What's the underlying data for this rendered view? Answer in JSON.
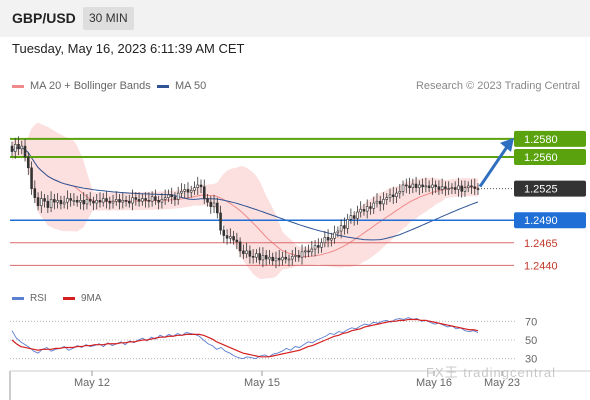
{
  "header": {
    "symbol": "GBP/USD",
    "timeframe": "30 MIN"
  },
  "datetime": "Tuesday, May 16, 2023 6:11:39 AM CET",
  "credit": "Research © 2023 Trading Central",
  "watermark": "FX王 tradingcentral",
  "colors": {
    "bollinger": "#f5a3a3",
    "ma50": "#2f5596",
    "resistance": "#5aa30e",
    "support": "#1f6fd6",
    "support_line": "#d96b6b",
    "current": "#333333",
    "rsi": "#5b7fd1",
    "rsi_ma": "#d42020",
    "arrow": "#2f6fbf"
  },
  "chart_data": [
    {
      "type": "candlestick",
      "legend": [
        {
          "name": "MA 20 + Bollinger Bands",
          "color": "#f08a8a"
        },
        {
          "name": "MA 50",
          "color": "#2f5596"
        }
      ],
      "x_ticks": [
        "May 12",
        "May 15",
        "May 16",
        "May 23"
      ],
      "ylim": [
        2.2426,
        1.2612
      ],
      "levels": [
        {
          "value": 1.258,
          "label": "1.2580",
          "kind": "resistance"
        },
        {
          "value": 1.256,
          "label": "1.2560",
          "kind": "resistance"
        },
        {
          "value": 1.2525,
          "label": "1.2525",
          "kind": "current"
        },
        {
          "value": 1.249,
          "label": "1.2490",
          "kind": "pivot"
        },
        {
          "value": 1.2465,
          "label": "1.2465",
          "kind": "support"
        },
        {
          "value": 1.244,
          "label": "1.2440",
          "kind": "support"
        }
      ],
      "close": [
        1.2566,
        1.2574,
        1.2569,
        1.2572,
        1.256,
        1.2548,
        1.2525,
        1.2515,
        1.2506,
        1.2514,
        1.2511,
        1.2504,
        1.2513,
        1.251,
        1.2512,
        1.2508,
        1.251,
        1.2514,
        1.2512,
        1.2512,
        1.251,
        1.2512,
        1.2508,
        1.2513,
        1.2511,
        1.2509,
        1.2512,
        1.251,
        1.2514,
        1.2511,
        1.2509,
        1.2511,
        1.2513,
        1.251,
        1.2512,
        1.2511,
        1.2509,
        1.2515,
        1.2513,
        1.2511,
        1.2514,
        1.2512,
        1.2511,
        1.2516,
        1.2512,
        1.251,
        1.2513,
        1.2515,
        1.2518,
        1.2516,
        1.2513,
        1.252,
        1.2522,
        1.2524,
        1.2521,
        1.2523,
        1.2526,
        1.2529,
        1.2527,
        1.2514,
        1.251,
        1.2505,
        1.2509,
        1.2498,
        1.2479,
        1.2473,
        1.247,
        1.2472,
        1.2468,
        1.2466,
        1.2456,
        1.2453,
        1.2456,
        1.245,
        1.2449,
        1.2453,
        1.2446,
        1.2451,
        1.2447,
        1.2449,
        1.2445,
        1.2448,
        1.2446,
        1.2449,
        1.2447,
        1.2447,
        1.245,
        1.2451,
        1.2449,
        1.2455,
        1.2456,
        1.2455,
        1.2458,
        1.2462,
        1.246,
        1.2465,
        1.2471,
        1.2468,
        1.247,
        1.2476,
        1.2478,
        1.2484,
        1.2481,
        1.2491,
        1.2495,
        1.2492,
        1.2499,
        1.2502,
        1.25,
        1.2505,
        1.2503,
        1.2509,
        1.2511,
        1.2508,
        1.2513,
        1.2515,
        1.2518,
        1.2516,
        1.252,
        1.2522,
        1.2529,
        1.2528,
        1.2526,
        1.253,
        1.2526,
        1.2529,
        1.2527,
        1.2528,
        1.2526,
        1.2529,
        1.2527,
        1.2524,
        1.2527,
        1.2525,
        1.2525,
        1.2526,
        1.2524,
        1.2528,
        1.2522,
        1.2526,
        1.2528,
        1.2527,
        1.2525,
        1.2524
      ]
    },
    {
      "type": "line",
      "title": "RSI",
      "legend": [
        {
          "name": "RSI",
          "color": "#5b7fd1"
        },
        {
          "name": "9MA",
          "color": "#d42020"
        }
      ],
      "y_ticks": [
        "70",
        "50",
        "30"
      ],
      "ylim": [
        20,
        80
      ],
      "series": [
        {
          "name": "RSI",
          "values": [
            60,
            52,
            48,
            45,
            42,
            38,
            36,
            40,
            42,
            38,
            40,
            41,
            43,
            39,
            41,
            44,
            42,
            45,
            43,
            44,
            46,
            43,
            47,
            44,
            46,
            48,
            45,
            49,
            47,
            50,
            52,
            49,
            53,
            51,
            55,
            53,
            56,
            54,
            57,
            55,
            58,
            57,
            56,
            54,
            50,
            46,
            44,
            40,
            42,
            38,
            36,
            33,
            31,
            30,
            32,
            31,
            30,
            33,
            34,
            32,
            35,
            36,
            38,
            41,
            39,
            43,
            42,
            45,
            48,
            47,
            50,
            52,
            54,
            57,
            56,
            59,
            58,
            61,
            63,
            62,
            65,
            67,
            66,
            69,
            68,
            70,
            71,
            69,
            72,
            73,
            72,
            74,
            72,
            73,
            70,
            71,
            69,
            67,
            68,
            66,
            64,
            65,
            62,
            63,
            60,
            59,
            60,
            58
          ]
        },
        {
          "name": "9MA",
          "values": [
            50,
            46,
            43,
            42,
            41,
            40,
            39,
            40,
            40,
            40,
            41,
            41,
            42,
            42,
            42,
            43,
            43,
            44,
            44,
            45,
            45,
            45,
            46,
            46,
            46,
            47,
            47,
            48,
            48,
            49,
            50,
            50,
            51,
            52,
            53,
            53,
            54,
            54,
            55,
            55,
            56,
            56,
            56,
            56,
            55,
            53,
            51,
            48,
            46,
            44,
            42,
            40,
            38,
            36,
            35,
            34,
            33,
            32,
            32,
            32,
            33,
            34,
            35,
            36,
            37,
            38,
            39,
            41,
            43,
            44,
            46,
            48,
            50,
            52,
            54,
            55,
            57,
            58,
            60,
            61,
            62,
            64,
            65,
            66,
            67,
            68,
            69,
            70,
            70,
            71,
            71,
            72,
            72,
            72,
            71,
            71,
            70,
            69,
            68,
            67,
            66,
            65,
            64,
            63,
            62,
            61,
            61,
            60
          ]
        }
      ]
    }
  ]
}
